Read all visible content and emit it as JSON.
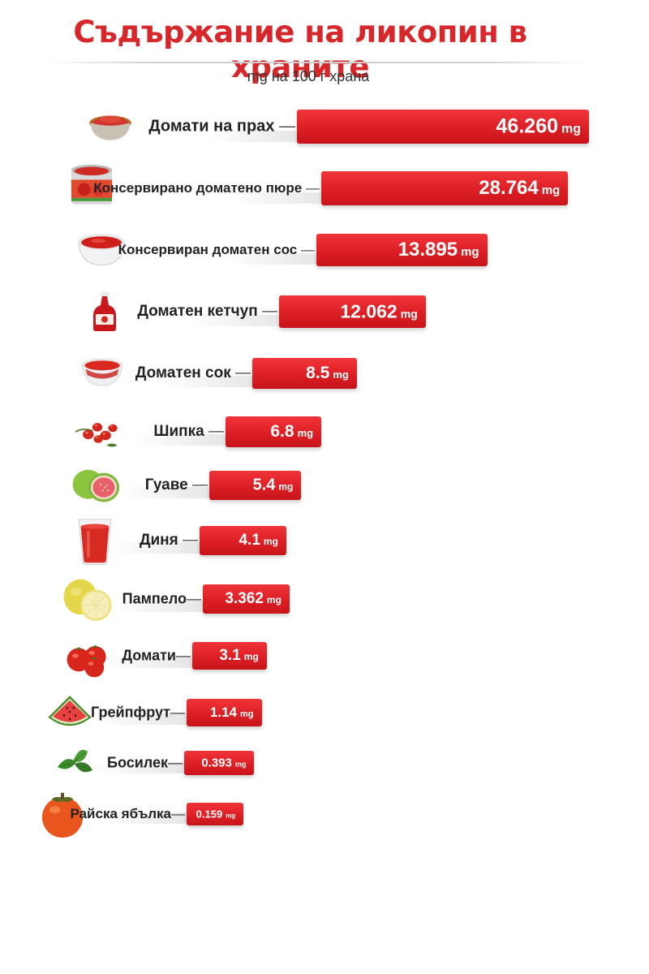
{
  "title": "Съдържание на ликопин в храните",
  "subtitle": "mg на 100 г храна",
  "colors": {
    "title": "#d8272a",
    "bar": "#dc1f24",
    "bar_text": "#ffffff"
  },
  "chart_data": {
    "type": "bar",
    "orientation": "horizontal",
    "title": "Съдържание на ликопин в храните",
    "subtitle": "mg на 100 г храна",
    "unit": "mg",
    "categories": [
      "Домати на прах",
      "Консервирано доматено пюре",
      "Консервиран доматен сос",
      "Доматен кетчуп",
      "Доматен сок",
      "Шипка",
      "Гуаве",
      "Диня",
      "Пампело",
      "Домати",
      "Грейпфрут",
      "Босилек",
      "Райска ябълка"
    ],
    "value_labels": [
      "46.260",
      "28.764",
      "13.895",
      "12.062",
      "8.5",
      "6.8",
      "5.4",
      "4.1",
      "3.362",
      "3.1",
      "1.14",
      "0.393",
      "0.159"
    ],
    "values": [
      46.26,
      28.764,
      13.895,
      12.062,
      8.5,
      6.8,
      5.4,
      4.1,
      3.362,
      3.1,
      1.14,
      0.393,
      0.159
    ],
    "bar_fraction": [
      1.0,
      0.845,
      0.585,
      0.502,
      0.358,
      0.328,
      0.315,
      0.297,
      0.297,
      0.255,
      0.257,
      0.24,
      0.195
    ],
    "icons": [
      "powder-bowl-icon",
      "canned-tomato-icon",
      "sauce-bowl-icon",
      "ketchup-bottle-icon",
      "juice-bowl-icon",
      "rosehip-icon",
      "guava-icon",
      "juice-glass-icon",
      "pomelo-icon",
      "tomatoes-icon",
      "watermelon-icon",
      "basil-icon",
      "persimmon-icon"
    ]
  }
}
